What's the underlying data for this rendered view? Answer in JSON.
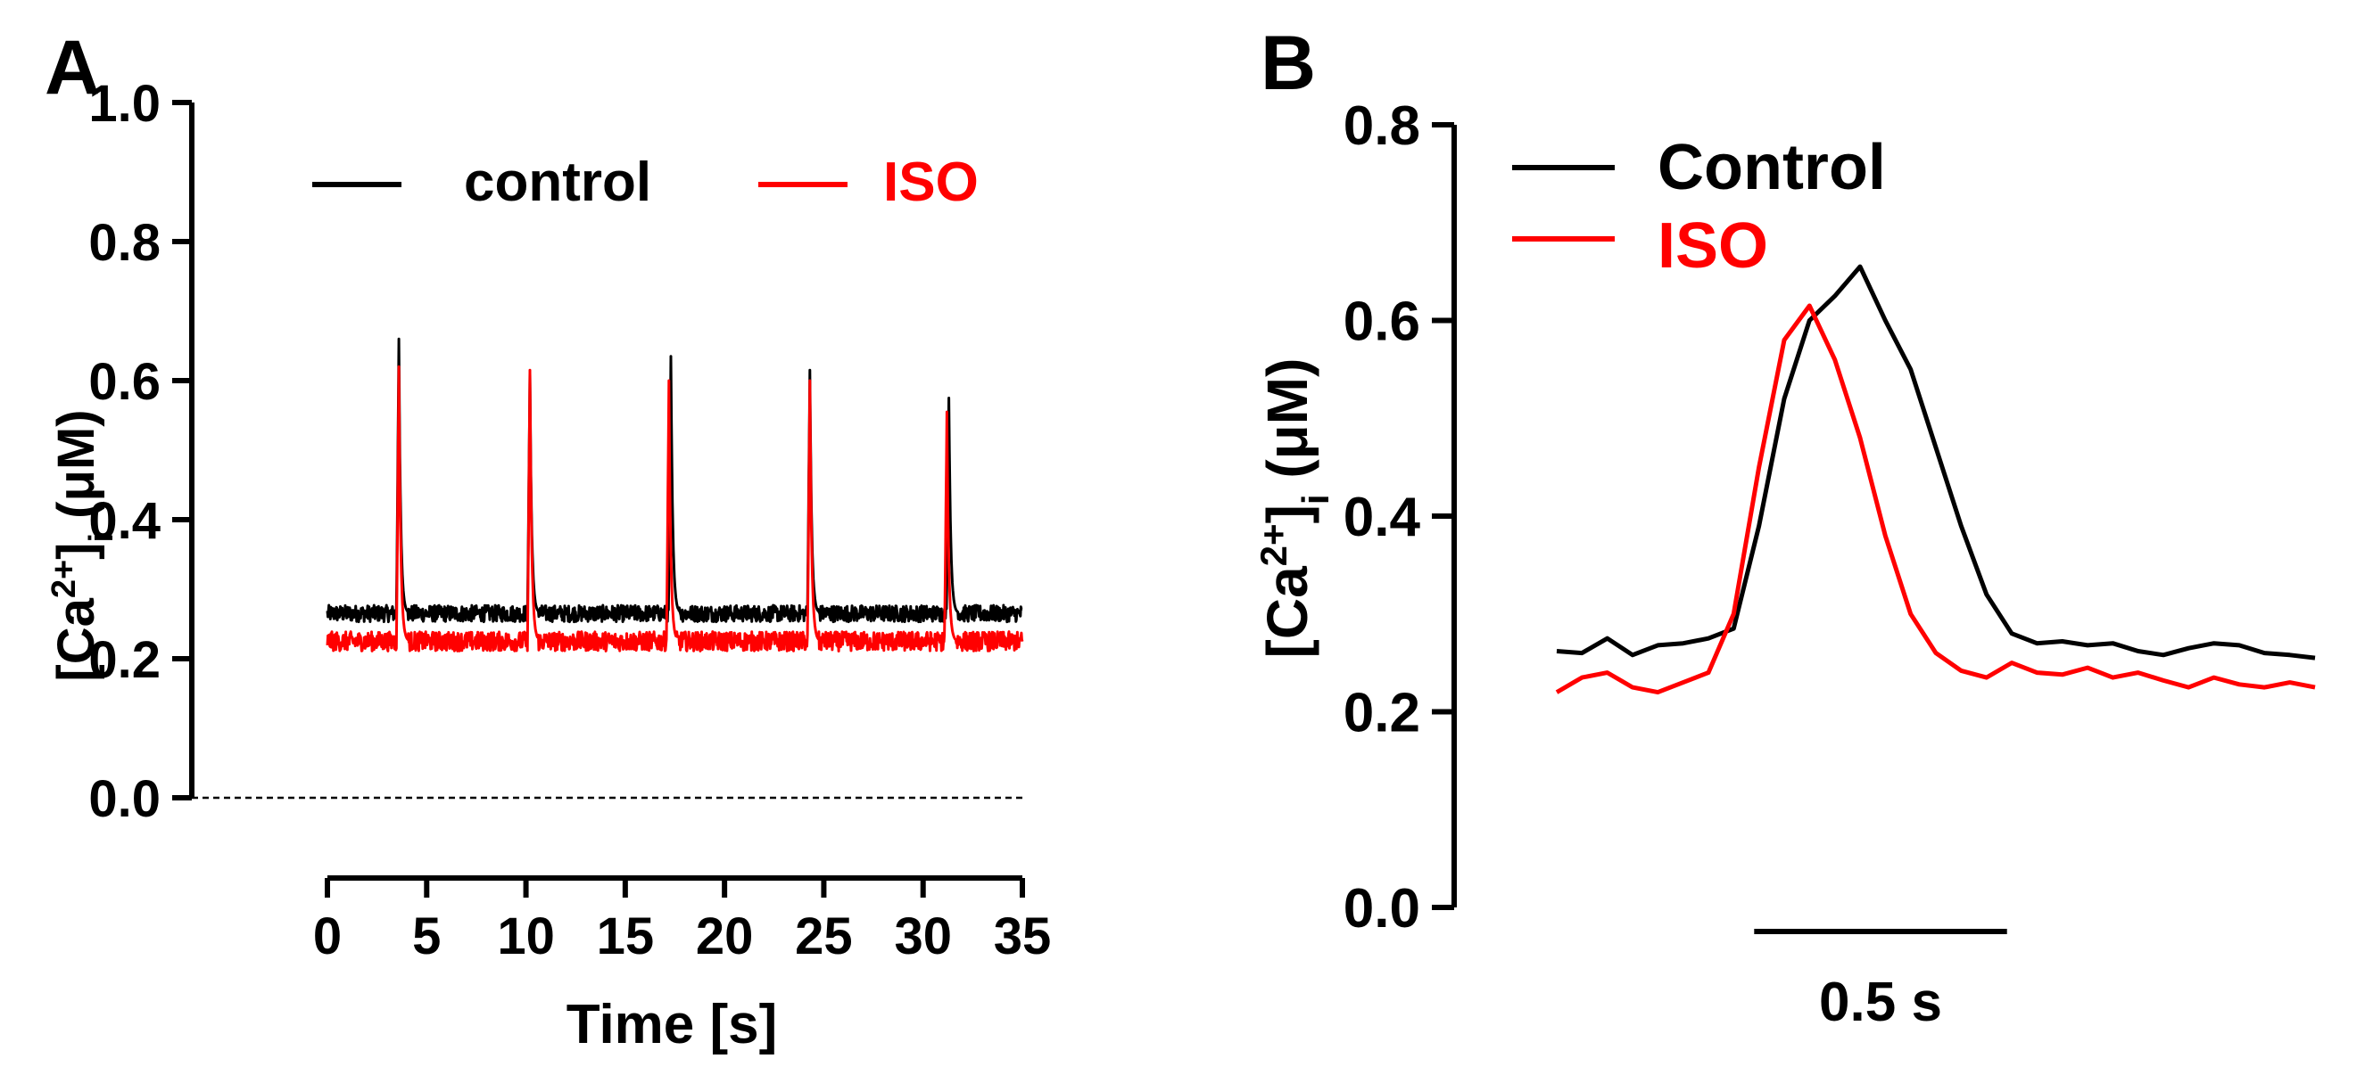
{
  "colors": {
    "control": "#000000",
    "iso": "#ff0000",
    "background": "#ffffff"
  },
  "chart_data": [
    {
      "type": "line",
      "panel_label": "A",
      "xlabel": "Time [s]",
      "ylabel_main": "[Ca",
      "ylabel_sup": "2+",
      "ylabel_bracket": "]",
      "ylabel_sub": "i",
      "ylabel_unit": " (μM)",
      "xlim": [
        0,
        35
      ],
      "ylim": [
        0,
        1.0
      ],
      "xticks": [
        0,
        5,
        10,
        15,
        20,
        25,
        30,
        35
      ],
      "yticks": [
        0,
        0.2,
        0.4,
        0.6,
        0.8,
        1.0
      ],
      "xtick_labels": [
        "0",
        "5",
        "10",
        "15",
        "20",
        "25",
        "30",
        "35"
      ],
      "ytick_labels": [
        "0.0",
        "0.2",
        "0.4",
        "0.6",
        "0.8",
        "1.0"
      ],
      "reference_line": {
        "y": 0,
        "style": "dashed"
      },
      "legend": {
        "placement": "top",
        "entries": [
          "control",
          "ISO"
        ]
      },
      "series": [
        {
          "name": "control",
          "color": "#000000",
          "baseline": 0.265,
          "noise": 0.012,
          "transients": [
            {
              "t": 3.6,
              "peak": 0.66
            },
            {
              "t": 10.2,
              "peak": 0.61
            },
            {
              "t": 17.3,
              "peak": 0.635
            },
            {
              "t": 24.3,
              "peak": 0.615
            },
            {
              "t": 31.3,
              "peak": 0.575
            }
          ]
        },
        {
          "name": "ISO",
          "color": "#ff0000",
          "baseline": 0.225,
          "noise": 0.014,
          "transients": [
            {
              "t": 3.6,
              "peak": 0.62
            },
            {
              "t": 10.2,
              "peak": 0.615
            },
            {
              "t": 17.2,
              "peak": 0.6
            },
            {
              "t": 24.3,
              "peak": 0.6
            },
            {
              "t": 31.2,
              "peak": 0.555
            }
          ]
        }
      ]
    },
    {
      "type": "line",
      "panel_label": "B",
      "ylabel_main": "[Ca",
      "ylabel_sup": "2+",
      "ylabel_bracket": "]",
      "ylabel_sub": "i",
      "ylabel_unit": " (μM)",
      "xlim": [
        0,
        1.5
      ],
      "ylim": [
        0,
        0.8
      ],
      "yticks": [
        0,
        0.2,
        0.4,
        0.6,
        0.8
      ],
      "ytick_labels": [
        "0.0",
        "0.2",
        "0.4",
        "0.6",
        "0.8"
      ],
      "scale_bar": {
        "length_s": 0.5,
        "label": "0.5 s"
      },
      "legend": {
        "placement": "top-left",
        "entries": [
          "Control",
          "ISO"
        ]
      },
      "series": [
        {
          "name": "Control",
          "color": "#000000",
          "x": [
            0,
            0.05,
            0.1,
            0.15,
            0.2,
            0.25,
            0.3,
            0.35,
            0.4,
            0.45,
            0.5,
            0.55,
            0.6,
            0.65,
            0.7,
            0.75,
            0.8,
            0.85,
            0.9,
            0.95,
            1.0,
            1.05,
            1.1,
            1.15,
            1.2,
            1.25,
            1.3,
            1.35,
            1.4,
            1.45,
            1.5
          ],
          "y": [
            0.262,
            0.26,
            0.275,
            0.258,
            0.268,
            0.27,
            0.275,
            0.285,
            0.39,
            0.52,
            0.6,
            0.625,
            0.655,
            0.6,
            0.55,
            0.47,
            0.39,
            0.32,
            0.28,
            0.27,
            0.272,
            0.268,
            0.27,
            0.262,
            0.258,
            0.265,
            0.27,
            0.268,
            0.26,
            0.258,
            0.255
          ]
        },
        {
          "name": "ISO",
          "color": "#ff0000",
          "x": [
            0,
            0.05,
            0.1,
            0.15,
            0.2,
            0.25,
            0.3,
            0.35,
            0.4,
            0.45,
            0.5,
            0.55,
            0.6,
            0.65,
            0.7,
            0.75,
            0.8,
            0.85,
            0.9,
            0.95,
            1.0,
            1.05,
            1.1,
            1.15,
            1.2,
            1.25,
            1.3,
            1.35,
            1.4,
            1.45,
            1.5
          ],
          "y": [
            0.22,
            0.235,
            0.24,
            0.225,
            0.22,
            0.23,
            0.24,
            0.3,
            0.45,
            0.58,
            0.615,
            0.56,
            0.48,
            0.38,
            0.3,
            0.26,
            0.242,
            0.235,
            0.25,
            0.24,
            0.238,
            0.245,
            0.235,
            0.24,
            0.232,
            0.225,
            0.235,
            0.228,
            0.225,
            0.23,
            0.225
          ]
        }
      ]
    }
  ]
}
